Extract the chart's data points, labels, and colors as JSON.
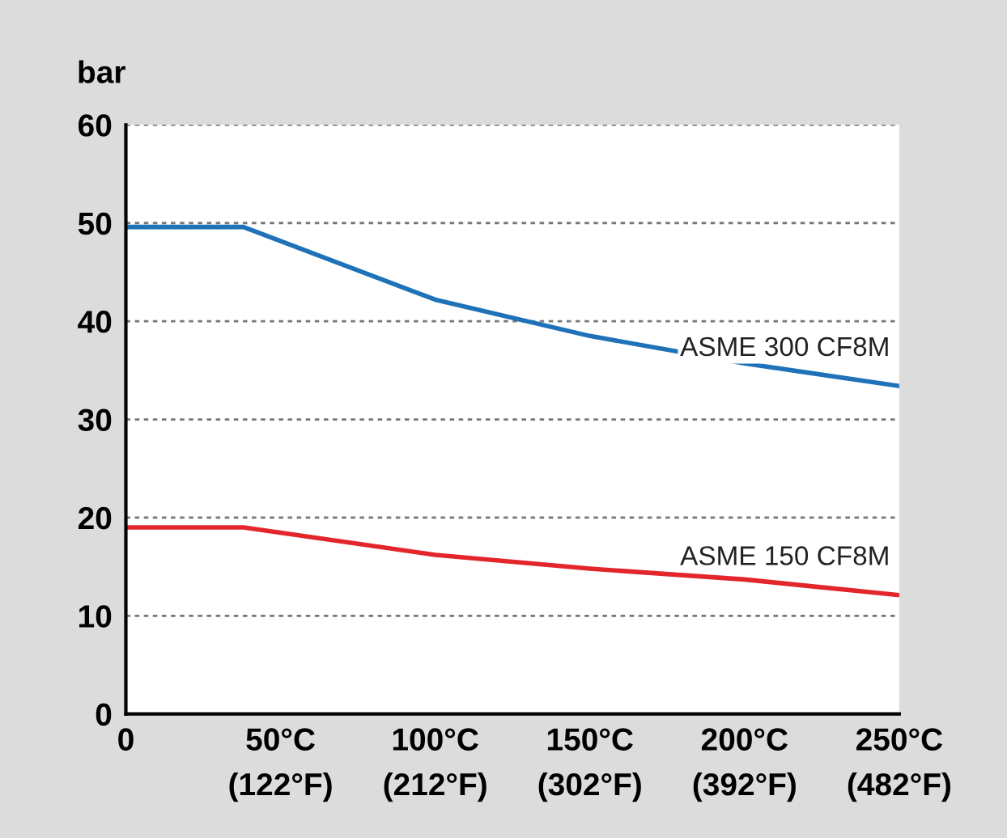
{
  "chart_data": {
    "type": "line",
    "ylabel": "bar",
    "x": [
      0,
      38,
      100,
      150,
      200,
      250
    ],
    "series": [
      {
        "name": "ASME 300 CF8M",
        "color": "#1f72b8",
        "values": [
          49.6,
          49.6,
          42.2,
          38.5,
          35.7,
          33.4
        ]
      },
      {
        "name": "ASME 150 CF8M",
        "color": "#e3262b",
        "values": [
          19.0,
          19.0,
          16.2,
          14.8,
          13.7,
          12.1
        ]
      }
    ],
    "xlim": [
      0,
      250
    ],
    "ylim": [
      0,
      60
    ],
    "xticks": [
      0,
      {
        "value": 50,
        "label": "50°C"
      },
      {
        "value": 100,
        "label": "100°C"
      },
      {
        "value": 150,
        "label": "150°C"
      },
      {
        "value": 200,
        "label": "200°C"
      },
      {
        "value": 250,
        "label": "250°C"
      }
    ],
    "x2lim": [
      32,
      482
    ],
    "x2ticks": [
      {
        "value": 122,
        "label": "(122°F)"
      },
      {
        "value": 212,
        "label": "(212°F)"
      },
      {
        "value": 302,
        "label": "(302°F)"
      },
      {
        "value": 392,
        "label": "(392°F)"
      },
      {
        "value": 482,
        "label": "(482°F)"
      }
    ],
    "yticks": [
      0,
      10,
      20,
      30,
      40,
      50,
      60
    ],
    "grid": "y",
    "marker": "none",
    "line_style": "solid",
    "legend": false
  }
}
